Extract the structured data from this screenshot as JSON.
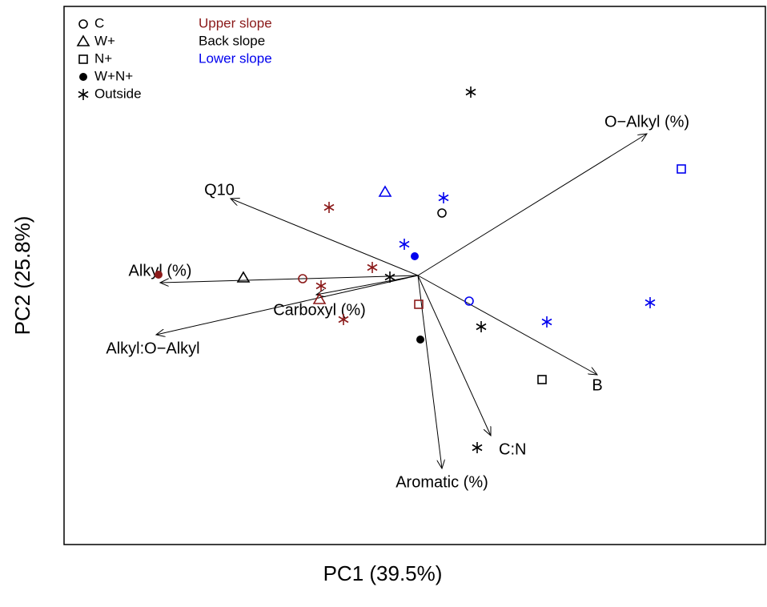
{
  "chart_data": {
    "type": "biplot",
    "x_label": "PC1 (39.5%)",
    "y_label": "PC2 (25.8%)",
    "xlim": [
      -4.42,
      4.34
    ],
    "ylim": [
      -3.36,
      3.36
    ],
    "symbol_legend": [
      {
        "label": "C",
        "symbol": "circle"
      },
      {
        "label": "W+",
        "symbol": "triangle"
      },
      {
        "label": "N+",
        "symbol": "square"
      },
      {
        "label": "W+N+",
        "symbol": "filled-circle"
      },
      {
        "label": "Outside",
        "symbol": "star"
      }
    ],
    "series": [
      {
        "name": "Upper slope",
        "color": "#8b1a1a",
        "symbols": [
          "circle",
          "triangle",
          "square",
          "filled-circle",
          "star",
          "star",
          "star",
          "star"
        ],
        "x": [
          -1.44,
          -1.23,
          0.01,
          -3.24,
          -1.11,
          -0.57,
          -1.21,
          -0.93
        ],
        "y": [
          -0.04,
          -0.3,
          -0.36,
          0.01,
          0.85,
          0.1,
          -0.13,
          -0.55
        ]
      },
      {
        "name": "Back slope",
        "color": "#000000",
        "symbols": [
          "circle",
          "triangle",
          "square",
          "filled-circle",
          "star",
          "star",
          "star",
          "star"
        ],
        "x": [
          0.3,
          -2.18,
          1.55,
          0.03,
          0.66,
          -0.35,
          0.79,
          0.74
        ],
        "y": [
          0.78,
          -0.03,
          -1.3,
          -0.8,
          2.29,
          -0.02,
          -0.64,
          -2.15
        ]
      },
      {
        "name": "Lower slope",
        "color": "#0000ee",
        "symbols": [
          "circle",
          "triangle",
          "square",
          "filled-circle",
          "star",
          "star",
          "star",
          "star"
        ],
        "x": [
          0.64,
          -0.41,
          3.29,
          -0.04,
          0.32,
          -0.17,
          1.61,
          2.9
        ],
        "y": [
          -0.32,
          1.04,
          1.33,
          0.24,
          0.97,
          0.39,
          -0.58,
          -0.34
        ]
      }
    ],
    "loadings": {
      "labels": [
        "O−Alkyl (%)",
        "Q10",
        "Alkyl (%)",
        "Carboxyl (%)",
        "Alkyl:O−Alkyl",
        "B",
        "C:N",
        "Aromatic (%)"
      ],
      "x": [
        2.86,
        -2.34,
        -3.22,
        -1.27,
        -3.27,
        2.24,
        0.91,
        0.3
      ],
      "y": [
        1.77,
        0.96,
        -0.09,
        -0.24,
        -0.74,
        -1.24,
        -2.0,
        -2.41
      ]
    }
  }
}
